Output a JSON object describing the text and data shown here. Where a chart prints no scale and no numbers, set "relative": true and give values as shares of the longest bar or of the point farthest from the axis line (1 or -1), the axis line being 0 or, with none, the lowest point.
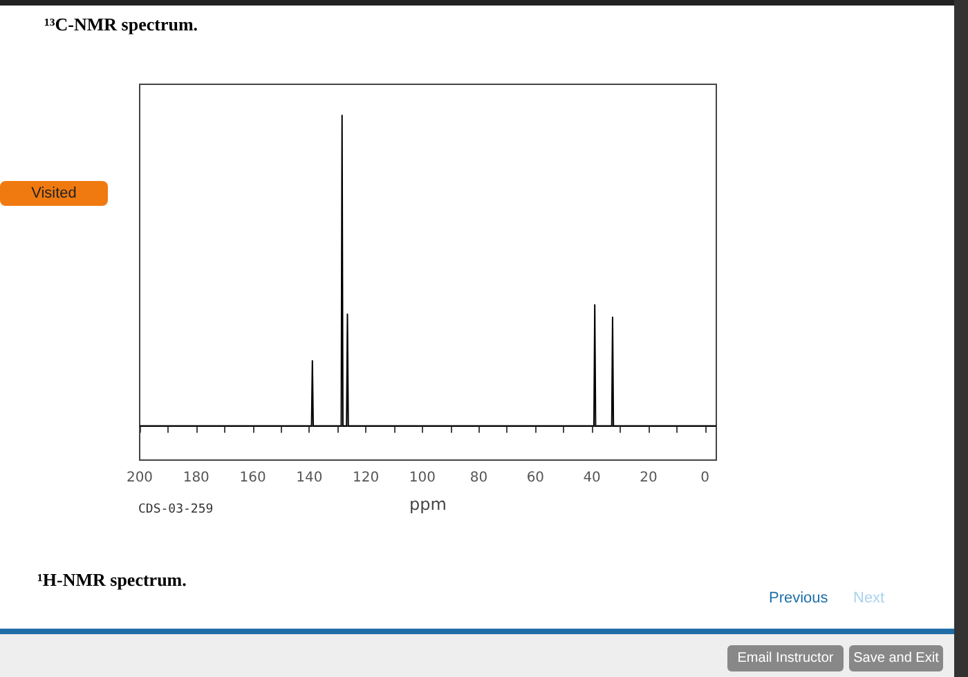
{
  "chart_data": {
    "type": "line",
    "title": "¹³C-NMR spectrum.",
    "xlabel": "ppm",
    "relative": true,
    "color": "#000000",
    "x": [
      200,
      139.2,
      138.9,
      138.6,
      128.7,
      128.4,
      128.1,
      126.8,
      126.5,
      126.2,
      39.3,
      39.0,
      38.7,
      33.0,
      32.7,
      32.4,
      -4
    ],
    "values": [
      0,
      0,
      0.21,
      0,
      0,
      1,
      0,
      0,
      0.36,
      0,
      0,
      0.39,
      0,
      0,
      0.35,
      0,
      0
    ],
    "xlim": [
      200,
      -4
    ],
    "xticks": [
      200,
      {
        "value": 190,
        "label": null
      },
      180,
      {
        "value": 170,
        "label": null
      },
      160,
      {
        "value": 150,
        "label": null
      },
      140,
      {
        "value": 130,
        "label": null
      },
      120,
      {
        "value": 110,
        "label": null
      },
      100,
      {
        "value": 90,
        "label": null
      },
      80,
      {
        "value": 70,
        "label": null
      },
      60,
      {
        "value": 50,
        "label": null
      },
      40,
      {
        "value": 30,
        "label": null
      },
      20,
      {
        "value": 10,
        "label": null
      },
      0
    ],
    "annotations": [
      "CDS-03-259",
      "¹H-NMR spectrum.",
      "Visited",
      "Previous",
      "Next",
      "Email Instructor",
      "Save and Exit"
    ]
  }
}
